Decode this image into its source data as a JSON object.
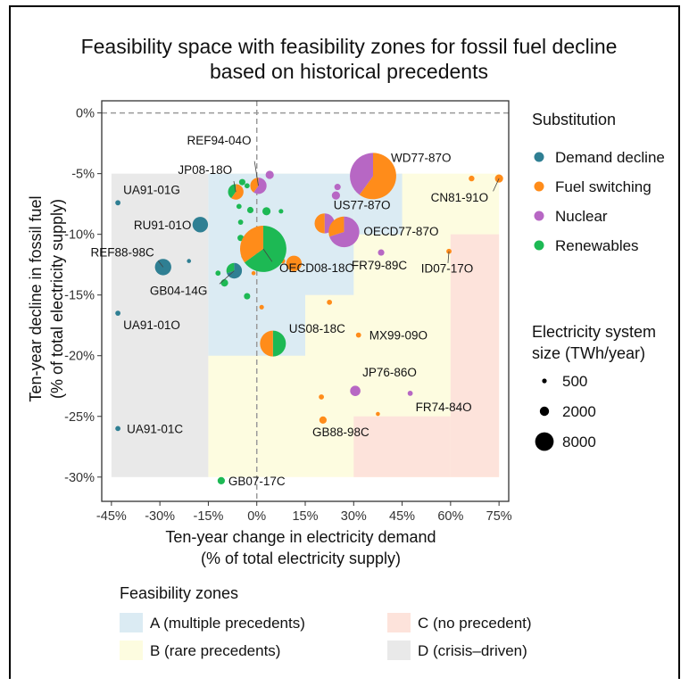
{
  "chart_data": {
    "type": "scatter",
    "title_line1": "Feasibility space with feasibility zones for fossil fuel decline",
    "title_line2": "based on historical precedents",
    "xlabel_line1": "Ten-year change in electricity demand",
    "xlabel_line2": "(% of total electricity supply)",
    "ylabel_line1": "Ten-year decline in fossil fuel",
    "ylabel_line2": "(% of total electricity supply)",
    "xlim": [
      -0.48,
      0.78
    ],
    "ylim": [
      -0.32,
      0.01
    ],
    "x_ticks": [
      -0.45,
      -0.3,
      -0.15,
      0,
      0.15,
      0.3,
      0.45,
      0.6,
      0.75
    ],
    "x_tick_labels": [
      "-45%",
      "-30%",
      "-15%",
      "0%",
      "15%",
      "30%",
      "45%",
      "60%",
      "75%"
    ],
    "y_ticks": [
      0,
      -0.05,
      -0.1,
      -0.15,
      -0.2,
      -0.25,
      -0.3
    ],
    "y_tick_labels": [
      "0%",
      "-5%",
      "-10%",
      "-15%",
      "-20%",
      "-25%",
      "-30%"
    ],
    "zones": [
      {
        "zone": "D",
        "color": "#e9e9e9",
        "x": [
          -0.45,
          -0.15
        ],
        "y": [
          -0.3,
          -0.05
        ]
      },
      {
        "zone": "B",
        "color": "#fdfce0",
        "x": [
          -0.15,
          0.75
        ],
        "y": [
          -0.3,
          -0.05
        ]
      },
      {
        "zone": "C",
        "color": "#fde3db",
        "x": [
          0.6,
          0.75
        ],
        "y": [
          -0.3,
          -0.1
        ]
      },
      {
        "zone": "C",
        "color": "#fde3db",
        "x": [
          0.3,
          0.6
        ],
        "y": [
          -0.3,
          -0.25
        ]
      },
      {
        "zone": "A",
        "color": "#dbebf3",
        "x": [
          -0.15,
          0.15
        ],
        "y": [
          -0.2,
          -0.05
        ]
      },
      {
        "zone": "A",
        "color": "#dbebf3",
        "x": [
          0.15,
          0.3
        ],
        "y": [
          -0.15,
          -0.05
        ]
      },
      {
        "zone": "A",
        "color": "#dbebf3",
        "x": [
          0.3,
          0.45
        ],
        "y": [
          -0.1,
          -0.05
        ]
      }
    ],
    "substitution_colors": {
      "demand": "#2f7f93",
      "fuel": "#ff8c1a",
      "nuclear": "#b767c4",
      "renewables": "#1db954"
    },
    "points": [
      {
        "label": "WD77-87O",
        "x": 0.36,
        "y": -0.052,
        "size": 8000,
        "mix": {
          "fuel": 0.6,
          "nuclear": 0.4
        }
      },
      {
        "label": "OECD08-18C",
        "x": 0.02,
        "y": -0.112,
        "size": 8000,
        "mix": {
          "renewables": 0.65,
          "fuel": 0.35
        }
      },
      {
        "label": "US08-18C",
        "x": 0.05,
        "y": -0.19,
        "size": 2500,
        "mix": {
          "renewables": 0.5,
          "fuel": 0.5
        }
      },
      {
        "label": "OECD77-87O",
        "x": 0.27,
        "y": -0.098,
        "size": 3500,
        "mix": {
          "nuclear": 0.7,
          "fuel": 0.3
        }
      },
      {
        "label": "US77-87O",
        "x": 0.21,
        "y": -0.091,
        "size": 1500,
        "mix": {
          "nuclear": 0.5,
          "fuel": 0.5
        }
      },
      {
        "label": "REF94-04O",
        "x": 0.005,
        "y": -0.06,
        "size": 1000,
        "mix": {
          "nuclear": 0.6,
          "fuel": 0.4
        }
      },
      {
        "label": "JP08-18O",
        "x": -0.065,
        "y": -0.065,
        "size": 900,
        "mix": {
          "fuel": 0.6,
          "renewables": 0.4
        }
      },
      {
        "label": "UA91-01G",
        "x": -0.43,
        "y": -0.074,
        "size": 100,
        "mix": {
          "demand": 1
        }
      },
      {
        "label": "RU91-01O",
        "x": -0.175,
        "y": -0.092,
        "size": 900,
        "mix": {
          "demand": 1
        }
      },
      {
        "label": "REF88-98C",
        "x": -0.29,
        "y": -0.127,
        "size": 1000,
        "mix": {
          "demand": 1
        }
      },
      {
        "label": "GB04-14G",
        "x": -0.07,
        "y": -0.13,
        "size": 900,
        "mix": {
          "demand": 0.7,
          "renewables": 0.3
        }
      },
      {
        "label": "UA91-01O",
        "x": -0.43,
        "y": -0.165,
        "size": 100,
        "mix": {
          "demand": 1
        }
      },
      {
        "label": "UA91-01C",
        "x": -0.43,
        "y": -0.26,
        "size": 100,
        "mix": {
          "demand": 1
        }
      },
      {
        "label": "FR79-89C",
        "x": 0.385,
        "y": -0.115,
        "size": 150,
        "mix": {
          "nuclear": 1
        }
      },
      {
        "label": "CN81-91O",
        "x": 0.75,
        "y": -0.054,
        "size": 250,
        "mix": {
          "fuel": 1
        }
      },
      {
        "label": "ID07-17O",
        "x": 0.595,
        "y": -0.114,
        "size": 100,
        "mix": {
          "fuel": 1
        }
      },
      {
        "label": "MX99-09O",
        "x": 0.315,
        "y": -0.183,
        "size": 100,
        "mix": {
          "fuel": 1
        }
      },
      {
        "label": "JP76-86O",
        "x": 0.305,
        "y": -0.229,
        "size": 400,
        "mix": {
          "nuclear": 1
        }
      },
      {
        "label": "FR74-84O",
        "x": 0.475,
        "y": -0.231,
        "size": 100,
        "mix": {
          "nuclear": 1
        }
      },
      {
        "label": "GB88-98C",
        "x": 0.205,
        "y": -0.253,
        "size": 200,
        "mix": {
          "fuel": 1
        }
      },
      {
        "label": "GB07-17C",
        "x": -0.11,
        "y": -0.303,
        "size": 200,
        "mix": {
          "renewables": 1
        }
      },
      {
        "label": "",
        "x": -0.21,
        "y": -0.122,
        "size": 60,
        "mix": {
          "demand": 1
        }
      },
      {
        "label": "",
        "x": 0.665,
        "y": -0.054,
        "size": 120,
        "mix": {
          "fuel": 1
        }
      },
      {
        "label": "",
        "x": 0.04,
        "y": -0.051,
        "size": 250,
        "mix": {
          "nuclear": 1
        }
      },
      {
        "label": "",
        "x": 0.245,
        "y": -0.068,
        "size": 250,
        "mix": {
          "nuclear": 1
        }
      },
      {
        "label": "",
        "x": 0.25,
        "y": -0.061,
        "size": 150,
        "mix": {
          "nuclear": 1
        }
      },
      {
        "label": "",
        "x": -0.045,
        "y": -0.057,
        "size": 150,
        "mix": {
          "renewables": 1
        }
      },
      {
        "label": "",
        "x": -0.03,
        "y": -0.06,
        "size": 100,
        "mix": {
          "renewables": 1
        }
      },
      {
        "label": "",
        "x": -0.055,
        "y": -0.077,
        "size": 100,
        "mix": {
          "renewables": 1
        }
      },
      {
        "label": "",
        "x": -0.02,
        "y": -0.08,
        "size": 150,
        "mix": {
          "renewables": 1
        }
      },
      {
        "label": "",
        "x": 0.03,
        "y": -0.081,
        "size": 250,
        "mix": {
          "renewables": 1
        }
      },
      {
        "label": "",
        "x": 0.075,
        "y": -0.081,
        "size": 80,
        "mix": {
          "renewables": 1
        }
      },
      {
        "label": "",
        "x": -0.05,
        "y": -0.09,
        "size": 100,
        "mix": {
          "renewables": 1
        }
      },
      {
        "label": "",
        "x": -0.01,
        "y": -0.099,
        "size": 300,
        "mix": {
          "renewables": 1
        }
      },
      {
        "label": "",
        "x": 0.045,
        "y": -0.1,
        "size": 100,
        "mix": {
          "renewables": 1
        }
      },
      {
        "label": "",
        "x": -0.05,
        "y": -0.103,
        "size": 150,
        "mix": {
          "renewables": 1
        }
      },
      {
        "label": "",
        "x": -0.04,
        "y": -0.118,
        "size": 100,
        "mix": {
          "renewables": 1
        }
      },
      {
        "label": "",
        "x": 0.045,
        "y": -0.122,
        "size": 100,
        "mix": {
          "renewables": 1
        }
      },
      {
        "label": "",
        "x": -0.1,
        "y": -0.14,
        "size": 200,
        "mix": {
          "renewables": 1
        }
      },
      {
        "label": "",
        "x": -0.12,
        "y": -0.132,
        "size": 100,
        "mix": {
          "renewables": 1
        }
      },
      {
        "label": "",
        "x": -0.03,
        "y": -0.151,
        "size": 150,
        "mix": {
          "renewables": 1
        }
      },
      {
        "label": "",
        "x": -0.01,
        "y": -0.132,
        "size": 60,
        "mix": {
          "fuel": 1
        }
      },
      {
        "label": "",
        "x": 0.115,
        "y": -0.124,
        "size": 900,
        "mix": {
          "fuel": 1
        }
      },
      {
        "label": "",
        "x": 0.015,
        "y": -0.16,
        "size": 80,
        "mix": {
          "fuel": 1
        }
      },
      {
        "label": "",
        "x": 0.08,
        "y": -0.122,
        "size": 100,
        "mix": {
          "fuel": 1
        }
      },
      {
        "label": "",
        "x": 0.225,
        "y": -0.156,
        "size": 100,
        "mix": {
          "fuel": 1
        }
      },
      {
        "label": "",
        "x": 0.2,
        "y": -0.234,
        "size": 100,
        "mix": {
          "fuel": 1
        }
      },
      {
        "label": "",
        "x": 0.375,
        "y": -0.248,
        "size": 60,
        "mix": {
          "fuel": 1
        }
      }
    ],
    "legend_substitution": {
      "title": "Substitution",
      "items": [
        {
          "key": "demand",
          "label": "Demand decline"
        },
        {
          "key": "fuel",
          "label": "Fuel switching"
        },
        {
          "key": "nuclear",
          "label": "Nuclear"
        },
        {
          "key": "renewables",
          "label": "Renewables"
        }
      ]
    },
    "legend_size": {
      "title_line1": "Electricity system",
      "title_line2": "size (TWh/year)",
      "items": [
        {
          "size": 500,
          "label": "500"
        },
        {
          "size": 2000,
          "label": "2000"
        },
        {
          "size": 8000,
          "label": "8000"
        }
      ]
    },
    "legend_zones": {
      "title": "Feasibility zones",
      "items": [
        {
          "zone": "A",
          "label": "A (multiple precedents)",
          "color": "#dbebf3"
        },
        {
          "zone": "C",
          "label": "C (no precedent)",
          "color": "#fde3db"
        },
        {
          "zone": "B",
          "label": "B (rare precedents)",
          "color": "#fdfce0"
        },
        {
          "zone": "D",
          "label": "D (crisis–driven)",
          "color": "#e9e9e9"
        }
      ]
    }
  }
}
